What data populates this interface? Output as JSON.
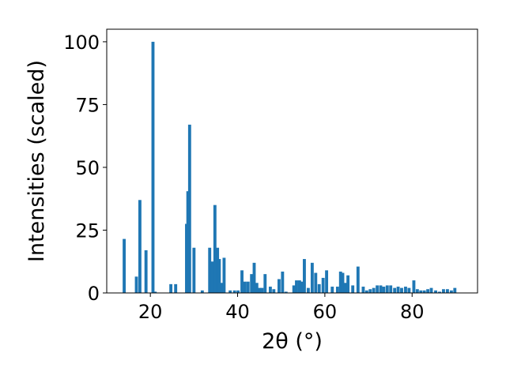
{
  "chart_data": {
    "type": "bar",
    "title": "",
    "xlabel": "2θ (°)",
    "ylabel": "Intensities (scaled)",
    "xlim": [
      10,
      95
    ],
    "ylim": [
      0,
      105
    ],
    "xticks": [
      20,
      40,
      60,
      80
    ],
    "yticks": [
      0,
      25,
      50,
      75,
      100
    ],
    "grid": false,
    "bar_color": "#1f77b4",
    "bar_width_deg": 0.7,
    "x": [
      14.0,
      16.8,
      17.6,
      19.0,
      20.6,
      21.1,
      24.7,
      25.8,
      28.3,
      28.6,
      29.0,
      30.0,
      31.9,
      33.6,
      34.2,
      34.8,
      35.4,
      35.8,
      36.3,
      36.9,
      38.3,
      39.3,
      40.1,
      41.0,
      41.7,
      42.4,
      43.2,
      43.8,
      44.4,
      45.0,
      45.6,
      46.3,
      47.5,
      48.3,
      49.5,
      50.3,
      51.1,
      52.9,
      53.5,
      54.2,
      54.7,
      55.3,
      56.2,
      57.1,
      57.9,
      58.7,
      59.6,
      60.4,
      61.7,
      62.9,
      63.6,
      64.1,
      64.7,
      65.3,
      66.4,
      67.6,
      68.8,
      69.6,
      70.4,
      71.2,
      72.0,
      72.8,
      73.5,
      74.3,
      75.1,
      76.0,
      76.8,
      77.6,
      78.5,
      79.3,
      80.4,
      81.2,
      82.0,
      82.8,
      83.6,
      84.4,
      85.4,
      86.3,
      87.2,
      88.1,
      89.0,
      89.8
    ],
    "values": [
      21.5,
      6.5,
      37,
      17,
      100,
      0.5,
      3.5,
      3.5,
      27.5,
      40.5,
      67,
      18,
      1,
      18,
      12.5,
      35,
      18,
      13.5,
      4,
      14,
      1,
      1,
      1,
      9,
      4.5,
      4.5,
      7.5,
      12,
      4,
      2,
      2,
      7.5,
      2.5,
      1.5,
      5.5,
      8.5,
      0.5,
      3,
      5,
      5,
      4.5,
      13.5,
      2,
      12,
      8,
      3.5,
      6,
      9,
      2.5,
      2.5,
      8.5,
      8,
      4,
      7,
      3,
      10.5,
      2.5,
      1,
      1.5,
      2,
      3,
      3,
      2.5,
      3,
      3,
      2,
      2.5,
      2,
      2.5,
      2,
      5,
      1.5,
      1,
      1,
      1.5,
      2,
      1,
      0.5,
      1.5,
      1.5,
      1,
      2
    ]
  }
}
